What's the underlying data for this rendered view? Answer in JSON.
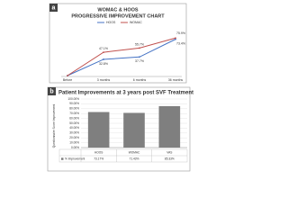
{
  "chart_data": [
    {
      "type": "line",
      "panel": "a",
      "title": "WOMAC & HOOS",
      "subtitle": "PROGRESSIVE IMPROVEMENT CHART",
      "categories": [
        "Before",
        "3 months",
        "6 months",
        "36 months"
      ],
      "series": [
        {
          "name": "HOOS",
          "color": "#4472c4",
          "values": [
            0,
            32.8,
            37.7,
            73.4
          ],
          "value_labels": [
            null,
            "32.8%",
            "37.7%",
            "73.4%"
          ]
        },
        {
          "name": "WOMAC",
          "color": "#c0504d",
          "values": [
            0,
            47.1,
            55.7,
            75.9
          ],
          "value_labels": [
            null,
            "47.1%",
            "55.7%",
            "75.9%"
          ]
        }
      ],
      "ylim": [
        0,
        80
      ],
      "legend": "top"
    },
    {
      "type": "bar",
      "panel": "b",
      "title": "Patient Improvements at 3 years post SVF Treatment",
      "ylabel": "Questionnaire Score Improvement",
      "categories": [
        "HOOS",
        "WOMAC",
        "VAS"
      ],
      "series": [
        {
          "name": "% Improvement",
          "color": "#7f7f7f",
          "values": [
            73.17,
            71.43,
            85.33
          ],
          "value_labels": [
            "73.17%",
            "71.43%",
            "85.33%"
          ]
        }
      ],
      "ylim": [
        0,
        100
      ],
      "yticks": [
        {
          "value": 0,
          "label": "0.00%"
        },
        {
          "value": 10,
          "label": "10.00%"
        },
        {
          "value": 20,
          "label": "20.00%"
        },
        {
          "value": 30,
          "label": "30.00%"
        },
        {
          "value": 40,
          "label": "40.00%"
        },
        {
          "value": 50,
          "label": "50.00%"
        },
        {
          "value": 60,
          "label": "60.00%"
        },
        {
          "value": 70,
          "label": "70.00%"
        },
        {
          "value": 80,
          "label": "80.00%"
        },
        {
          "value": 90,
          "label": "90.00%"
        },
        {
          "value": 100,
          "label": "100.00%"
        }
      ],
      "grid": true
    }
  ]
}
